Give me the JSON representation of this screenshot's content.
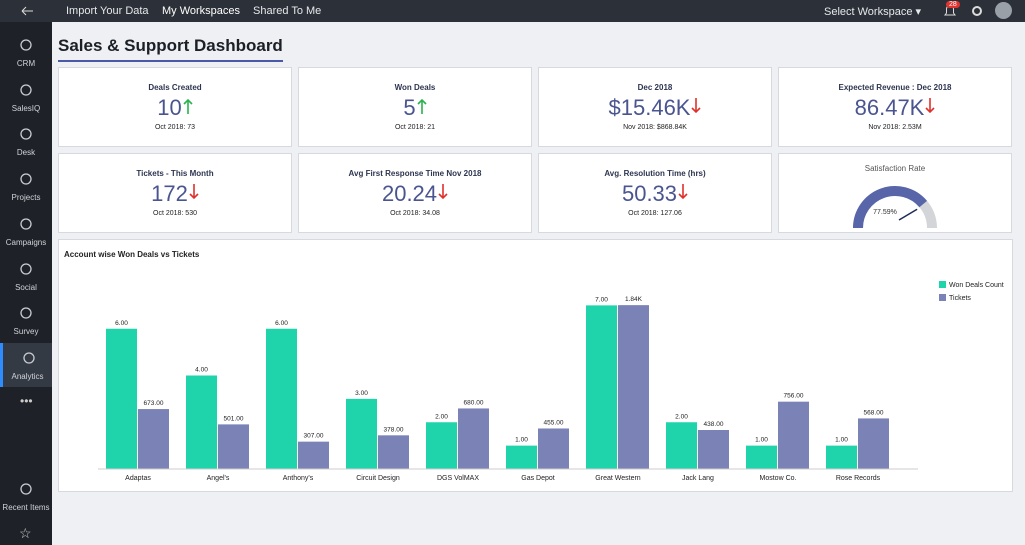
{
  "topbar": {
    "tabs": [
      "Import Your Data",
      "My Workspaces",
      "Shared To Me"
    ],
    "active": 1,
    "workspace": "Select Workspace",
    "notifications": "28"
  },
  "sidebar": {
    "items": [
      "CRM",
      "SalesIQ",
      "Desk",
      "Projects",
      "Campaigns",
      "Social",
      "Survey",
      "Analytics"
    ],
    "active": 7,
    "bottom": [
      "Recent Items"
    ]
  },
  "title": "Sales & Support Dashboard",
  "kpis": [
    {
      "title": "Deals Created",
      "value": "10",
      "trend": "up",
      "note": "Oct 2018: 73"
    },
    {
      "title": "Won Deals",
      "value": "5",
      "trend": "up",
      "note": "Oct 2018: 21"
    },
    {
      "title": "Dec 2018",
      "value": "$15.46K",
      "trend": "down",
      "note": "Nov 2018: $868.84K"
    },
    {
      "title": "Expected Revenue : Dec 2018",
      "value": "86.47K",
      "trend": "down",
      "note": "Nov 2018: 2.53M"
    },
    {
      "title": "Tickets - This Month",
      "value": "172",
      "trend": "down",
      "note": "Oct 2018: 530"
    },
    {
      "title": "Avg First Response Time Nov 2018",
      "value": "20.24",
      "trend": "down",
      "note": "Oct 2018: 34.08"
    },
    {
      "title": "Avg. Resolution Time (hrs)",
      "value": "50.33",
      "trend": "down",
      "note": "Oct 2018: 127.06"
    }
  ],
  "gauge": {
    "title": "Satisfaction Rate",
    "value": 77.59,
    "value_label": "77.59%",
    "lim": [
      0,
      100
    ]
  },
  "chart_data": {
    "type": "bar",
    "title": "Account wise Won Deals vs Tickets",
    "categories": [
      "Adaptas",
      "Angel's",
      "Anthony's",
      "Circuit Design",
      "DGS VolMAX",
      "Gas Depot",
      "Great Western",
      "Jack Lang",
      "Mostow Co.",
      "Rose Records"
    ],
    "series": [
      {
        "name": "Won Deals Count",
        "color": "#1fd3aa",
        "values": [
          6,
          4,
          6,
          3,
          2,
          1,
          7,
          2,
          1,
          1
        ],
        "value_labels": [
          "6.00",
          "4.00",
          "6.00",
          "3.00",
          "2.00",
          "1.00",
          "7.00",
          "2.00",
          "1.00",
          "1.00"
        ]
      },
      {
        "name": "Tickets",
        "color": "#7a82b6",
        "axis": "y2",
        "values": [
          673,
          501,
          307,
          378,
          680,
          455,
          1840,
          438,
          756,
          568
        ],
        "value_labels": [
          "673.00",
          "501.00",
          "307.00",
          "378.00",
          "680.00",
          "455.00",
          "1.84K",
          "438.00",
          "756.00",
          "568.00"
        ]
      }
    ],
    "ylim": [
      0,
      8
    ],
    "y2lim": [
      0,
      2100
    ],
    "legend": "top-right"
  }
}
